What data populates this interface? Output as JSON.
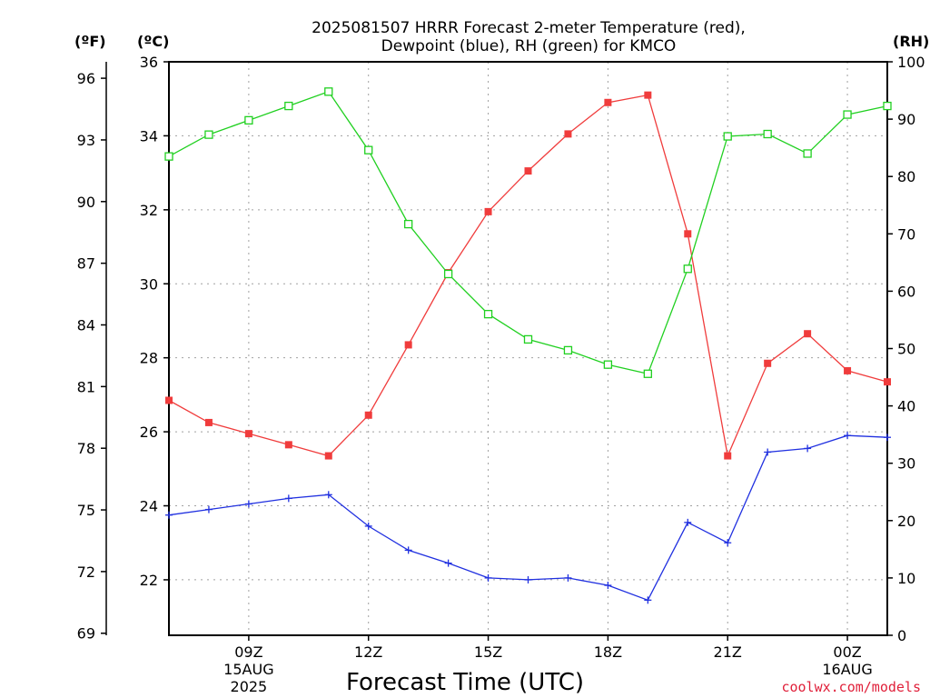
{
  "title_lines": [
    "2025081507 HRRR Forecast 2-meter Temperature (red),",
    "Dewpoint (blue), RH (green) for KMCO"
  ],
  "units": {
    "fahrenheit": "(ºF)",
    "celsius": "(ºC)",
    "rh": "(RH)"
  },
  "credit": "coolwx.com/models",
  "chart_data": {
    "type": "line",
    "title": "2025081507 HRRR Forecast 2-meter Temperature (red), Dewpoint (blue), RH (green) for KMCO",
    "xlabel": "Forecast Time (UTC)",
    "x": [
      7,
      8,
      9,
      10,
      11,
      12,
      13,
      14,
      15,
      16,
      17,
      18,
      19,
      20,
      21,
      22,
      23,
      24,
      25
    ],
    "x_range": [
      7,
      25
    ],
    "x_ticks": [
      {
        "x": 9,
        "label": "09Z",
        "sub": [
          "15AUG",
          "2025"
        ]
      },
      {
        "x": 12,
        "label": "12Z",
        "sub": []
      },
      {
        "x": 15,
        "label": "15Z",
        "sub": []
      },
      {
        "x": 18,
        "label": "18Z",
        "sub": []
      },
      {
        "x": 21,
        "label": "21Z",
        "sub": []
      },
      {
        "x": 24,
        "label": "00Z",
        "sub": [
          "16AUG"
        ]
      }
    ],
    "y_left_celsius": {
      "range": [
        20.5,
        36
      ],
      "ticks": [
        22,
        24,
        26,
        28,
        30,
        32,
        34,
        36
      ]
    },
    "y_left_fahrenheit": {
      "range": [
        68.9,
        96.8
      ],
      "ticks": [
        69,
        72,
        75,
        78,
        81,
        84,
        87,
        90,
        93,
        96
      ]
    },
    "y_right_rh": {
      "range": [
        0,
        100
      ],
      "ticks": [
        0,
        10,
        20,
        30,
        40,
        50,
        60,
        70,
        80,
        90,
        100
      ]
    },
    "grid": true,
    "series": [
      {
        "name": "Temperature",
        "axis": "celsius",
        "color": "#f03c3c",
        "marker": "filled-square",
        "values": [
          26.85,
          26.25,
          25.95,
          25.65,
          25.35,
          26.45,
          28.35,
          30.3,
          31.95,
          33.05,
          34.05,
          34.9,
          35.1,
          31.35,
          25.35,
          27.85,
          28.65,
          27.65,
          27.35
        ]
      },
      {
        "name": "Dewpoint",
        "axis": "celsius",
        "color": "#2030e0",
        "marker": "plus",
        "values": [
          23.75,
          23.9,
          24.05,
          24.2,
          24.3,
          23.45,
          22.8,
          22.45,
          22.05,
          22.0,
          22.05,
          21.85,
          21.45,
          23.55,
          23.0,
          25.45,
          25.55,
          25.9,
          25.85
        ]
      },
      {
        "name": "RH",
        "axis": "rh",
        "color": "#20d020",
        "marker": "open-square",
        "values": [
          83.5,
          87.3,
          89.8,
          92.3,
          94.8,
          84.6,
          71.7,
          63.0,
          56.0,
          51.6,
          49.7,
          47.2,
          45.6,
          63.9,
          87.0,
          87.4,
          84.0,
          90.8,
          92.3
        ]
      }
    ]
  }
}
